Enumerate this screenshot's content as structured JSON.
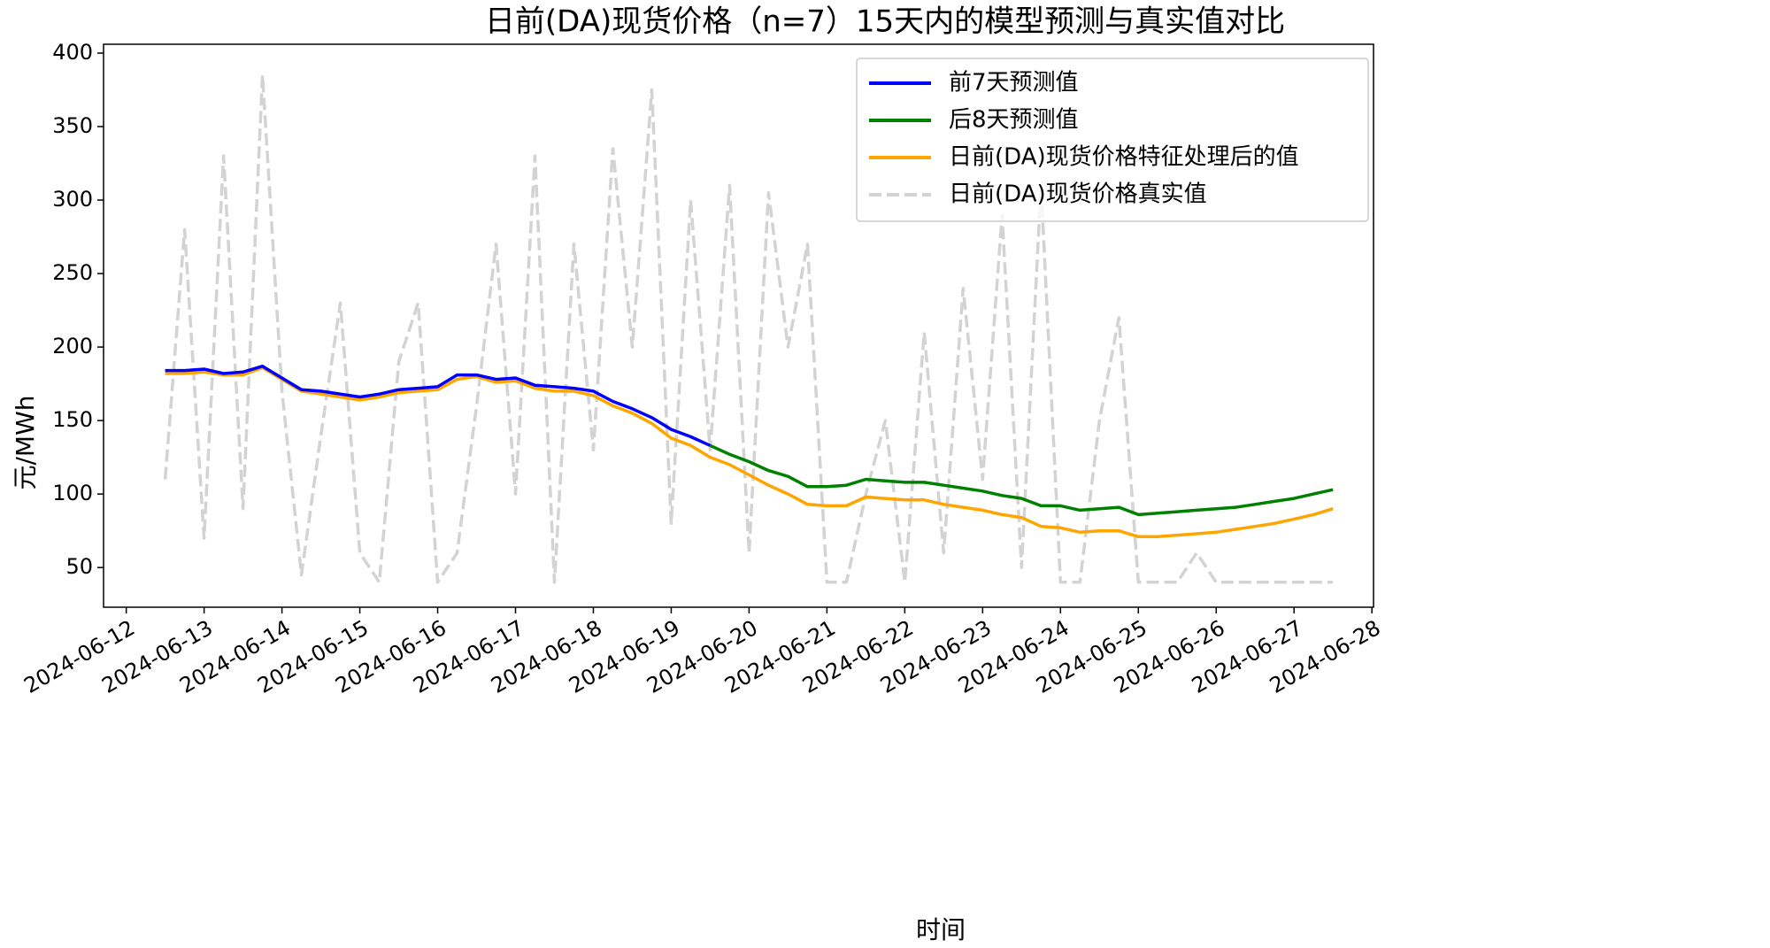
{
  "chart_data": {
    "type": "line",
    "title": "日前(DA)现货价格（n=7）15天内的模型预测与真实值对比",
    "x_label": "时间",
    "y_label": "元/MWh",
    "x": [
      "2024-06-12T12:00",
      "2024-06-12T18:00",
      "2024-06-13T00:00",
      "2024-06-13T06:00",
      "2024-06-13T12:00",
      "2024-06-13T18:00",
      "2024-06-14T00:00",
      "2024-06-14T06:00",
      "2024-06-14T12:00",
      "2024-06-14T18:00",
      "2024-06-15T00:00",
      "2024-06-15T06:00",
      "2024-06-15T12:00",
      "2024-06-15T18:00",
      "2024-06-16T00:00",
      "2024-06-16T06:00",
      "2024-06-16T12:00",
      "2024-06-16T18:00",
      "2024-06-17T00:00",
      "2024-06-17T06:00",
      "2024-06-17T12:00",
      "2024-06-17T18:00",
      "2024-06-18T00:00",
      "2024-06-18T06:00",
      "2024-06-18T12:00",
      "2024-06-18T18:00",
      "2024-06-19T00:00",
      "2024-06-19T06:00",
      "2024-06-19T12:00",
      "2024-06-19T18:00",
      "2024-06-20T00:00",
      "2024-06-20T06:00",
      "2024-06-20T12:00",
      "2024-06-20T18:00",
      "2024-06-21T00:00",
      "2024-06-21T06:00",
      "2024-06-21T12:00",
      "2024-06-21T18:00",
      "2024-06-22T00:00",
      "2024-06-22T06:00",
      "2024-06-22T12:00",
      "2024-06-22T18:00",
      "2024-06-23T00:00",
      "2024-06-23T06:00",
      "2024-06-23T12:00",
      "2024-06-23T18:00",
      "2024-06-24T00:00",
      "2024-06-24T06:00",
      "2024-06-24T12:00",
      "2024-06-24T18:00",
      "2024-06-25T00:00",
      "2024-06-25T06:00",
      "2024-06-25T12:00",
      "2024-06-25T18:00",
      "2024-06-26T00:00",
      "2024-06-26T06:00",
      "2024-06-26T12:00",
      "2024-06-26T18:00",
      "2024-06-27T00:00",
      "2024-06-27T06:00",
      "2024-06-27T12:00"
    ],
    "series": [
      {
        "name": "前7天预测值",
        "color": "#0000ff",
        "values": [
          184,
          184,
          185,
          182,
          183,
          187,
          179,
          171,
          170,
          168,
          166,
          168,
          171,
          172,
          173,
          181,
          181,
          178,
          179,
          174,
          173,
          172,
          170,
          163,
          158,
          152,
          144,
          139,
          133,
          null,
          null,
          null,
          null,
          null,
          null,
          null,
          null,
          null,
          null,
          null,
          null,
          null,
          null,
          null,
          null,
          null,
          null,
          null,
          null,
          null,
          null,
          null,
          null,
          null,
          null,
          null,
          null,
          null,
          null,
          null,
          null
        ]
      },
      {
        "name": "后8天预测值",
        "color": "#008000",
        "values": [
          null,
          null,
          null,
          null,
          null,
          null,
          null,
          null,
          null,
          null,
          null,
          null,
          null,
          null,
          null,
          null,
          null,
          null,
          null,
          null,
          null,
          null,
          null,
          null,
          null,
          null,
          null,
          null,
          133,
          127,
          122,
          116,
          112,
          105,
          105,
          106,
          110,
          109,
          108,
          108,
          106,
          104,
          102,
          99,
          97,
          92,
          92,
          89,
          90,
          91,
          86,
          87,
          88,
          89,
          90,
          91,
          93,
          95,
          97,
          100,
          103
        ]
      },
      {
        "name": "日前(DA)现货价格特征处理后的值",
        "color": "#ffa500",
        "values": [
          182,
          182,
          183,
          181,
          181,
          186,
          178,
          170,
          168,
          166,
          164,
          166,
          169,
          170,
          171,
          178,
          180,
          176,
          177,
          172,
          170,
          170,
          167,
          160,
          155,
          148,
          138,
          133,
          125,
          120,
          113,
          106,
          100,
          93,
          92,
          92,
          98,
          97,
          96,
          96,
          93,
          91,
          89,
          86,
          84,
          78,
          77,
          74,
          75,
          75,
          71,
          71,
          72,
          73,
          74,
          76,
          78,
          80,
          83,
          86,
          90
        ]
      },
      {
        "name": "日前(DA)现货价格真实值",
        "color": "#d3d3d3",
        "dashed": true,
        "values": [
          110,
          280,
          70,
          330,
          90,
          385,
          170,
          45,
          140,
          230,
          60,
          40,
          190,
          230,
          40,
          60,
          160,
          270,
          100,
          330,
          40,
          270,
          130,
          335,
          200,
          375,
          80,
          300,
          130,
          310,
          60,
          305,
          200,
          270,
          40,
          40,
          100,
          150,
          40,
          210,
          60,
          240,
          110,
          290,
          50,
          310,
          40,
          40,
          150,
          220,
          40,
          40,
          40,
          60,
          40,
          40,
          40,
          40,
          40,
          40,
          40
        ]
      }
    ],
    "xlim": [
      "2024-06-11T17:00",
      "2024-06-28T00:30"
    ],
    "xticks": [
      "2024-06-12",
      "2024-06-13",
      "2024-06-14",
      "2024-06-15",
      "2024-06-16",
      "2024-06-17",
      "2024-06-18",
      "2024-06-19",
      "2024-06-20",
      "2024-06-21",
      "2024-06-22",
      "2024-06-23",
      "2024-06-24",
      "2024-06-25",
      "2024-06-26",
      "2024-06-27",
      "2024-06-28"
    ],
    "ylim": [
      23,
      406
    ],
    "yticks": [
      50,
      100,
      150,
      200,
      250,
      300,
      350,
      400
    ],
    "legend": "upper right"
  }
}
